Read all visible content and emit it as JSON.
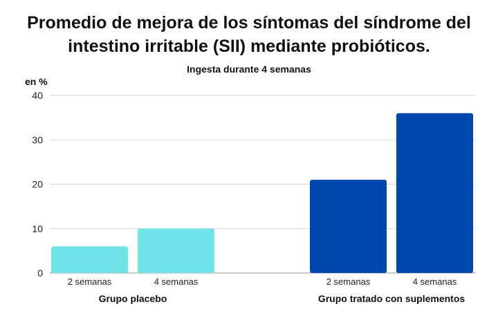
{
  "chart_data": {
    "type": "bar",
    "title": "Promedio de mejora de los síntomas del síndrome del intestino irritable (SII) mediante probióticos.",
    "subtitle": "Ingesta durante 4 semanas",
    "ylabel": "en %",
    "ylim": [
      0,
      40
    ],
    "yticks": [
      0,
      10,
      20,
      30,
      40
    ],
    "grid": true,
    "groups": [
      {
        "name": "Grupo placebo",
        "color": "#6ee3e8",
        "categories": [
          "2 semanas",
          "4 semanas"
        ],
        "values": [
          6,
          10
        ]
      },
      {
        "name": "Grupo tratado con suplementos",
        "color": "#0048ad",
        "categories": [
          "2 semanas",
          "4 semanas"
        ],
        "values": [
          21,
          36
        ]
      }
    ]
  }
}
